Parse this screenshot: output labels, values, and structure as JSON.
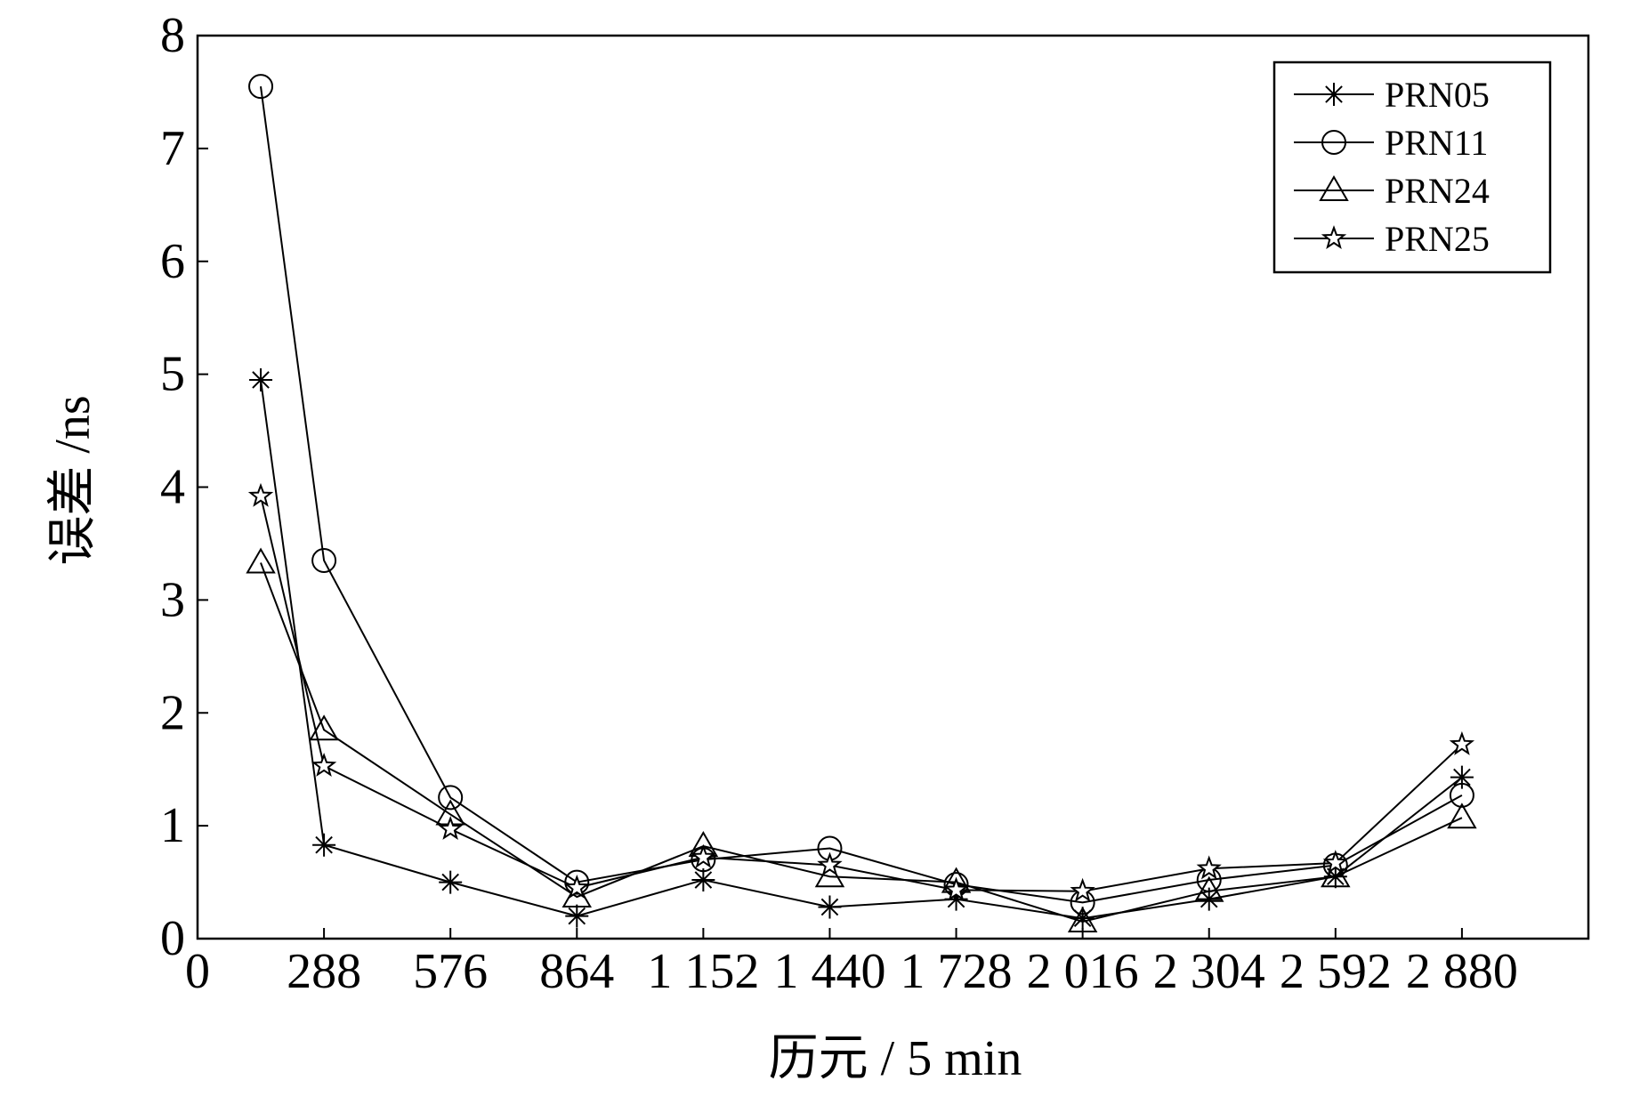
{
  "chart_data": {
    "type": "line",
    "xlabel": "历元 / 5 min",
    "ylabel": "误差 /ns",
    "xlim": [
      0,
      3168
    ],
    "ylim": [
      0,
      8
    ],
    "x_ticks": [
      0,
      288,
      576,
      864,
      1152,
      1440,
      1728,
      2016,
      2304,
      2592,
      2880
    ],
    "x_tick_labels": [
      "0",
      "288",
      "576",
      "864",
      "1 152",
      "1 440",
      "1 728",
      "2 016",
      "2 304",
      "2 592",
      "2 880"
    ],
    "y_ticks": [
      0,
      1,
      2,
      3,
      4,
      5,
      6,
      7,
      8
    ],
    "y_tick_labels": [
      "0",
      "1",
      "2",
      "3",
      "4",
      "5",
      "6",
      "7",
      "8"
    ],
    "legend_position": "top-right",
    "grid": false,
    "x": [
      144,
      288,
      576,
      864,
      1152,
      1440,
      1728,
      2016,
      2304,
      2592,
      2880
    ],
    "series": [
      {
        "name": "PRN05",
        "marker": "asterisk",
        "values": [
          4.95,
          0.83,
          0.5,
          0.2,
          0.52,
          0.28,
          0.35,
          0.18,
          0.35,
          0.55,
          1.43
        ]
      },
      {
        "name": "PRN11",
        "marker": "circle",
        "values": [
          7.55,
          3.35,
          1.25,
          0.5,
          0.7,
          0.8,
          0.48,
          0.32,
          0.52,
          0.65,
          1.27
        ]
      },
      {
        "name": "PRN24",
        "marker": "triangle",
        "values": [
          3.33,
          1.85,
          1.1,
          0.37,
          0.82,
          0.55,
          0.5,
          0.15,
          0.42,
          0.55,
          1.07
        ]
      },
      {
        "name": "PRN25",
        "marker": "star",
        "values": [
          3.92,
          1.53,
          0.97,
          0.45,
          0.72,
          0.65,
          0.43,
          0.42,
          0.62,
          0.67,
          1.72
        ]
      }
    ]
  }
}
